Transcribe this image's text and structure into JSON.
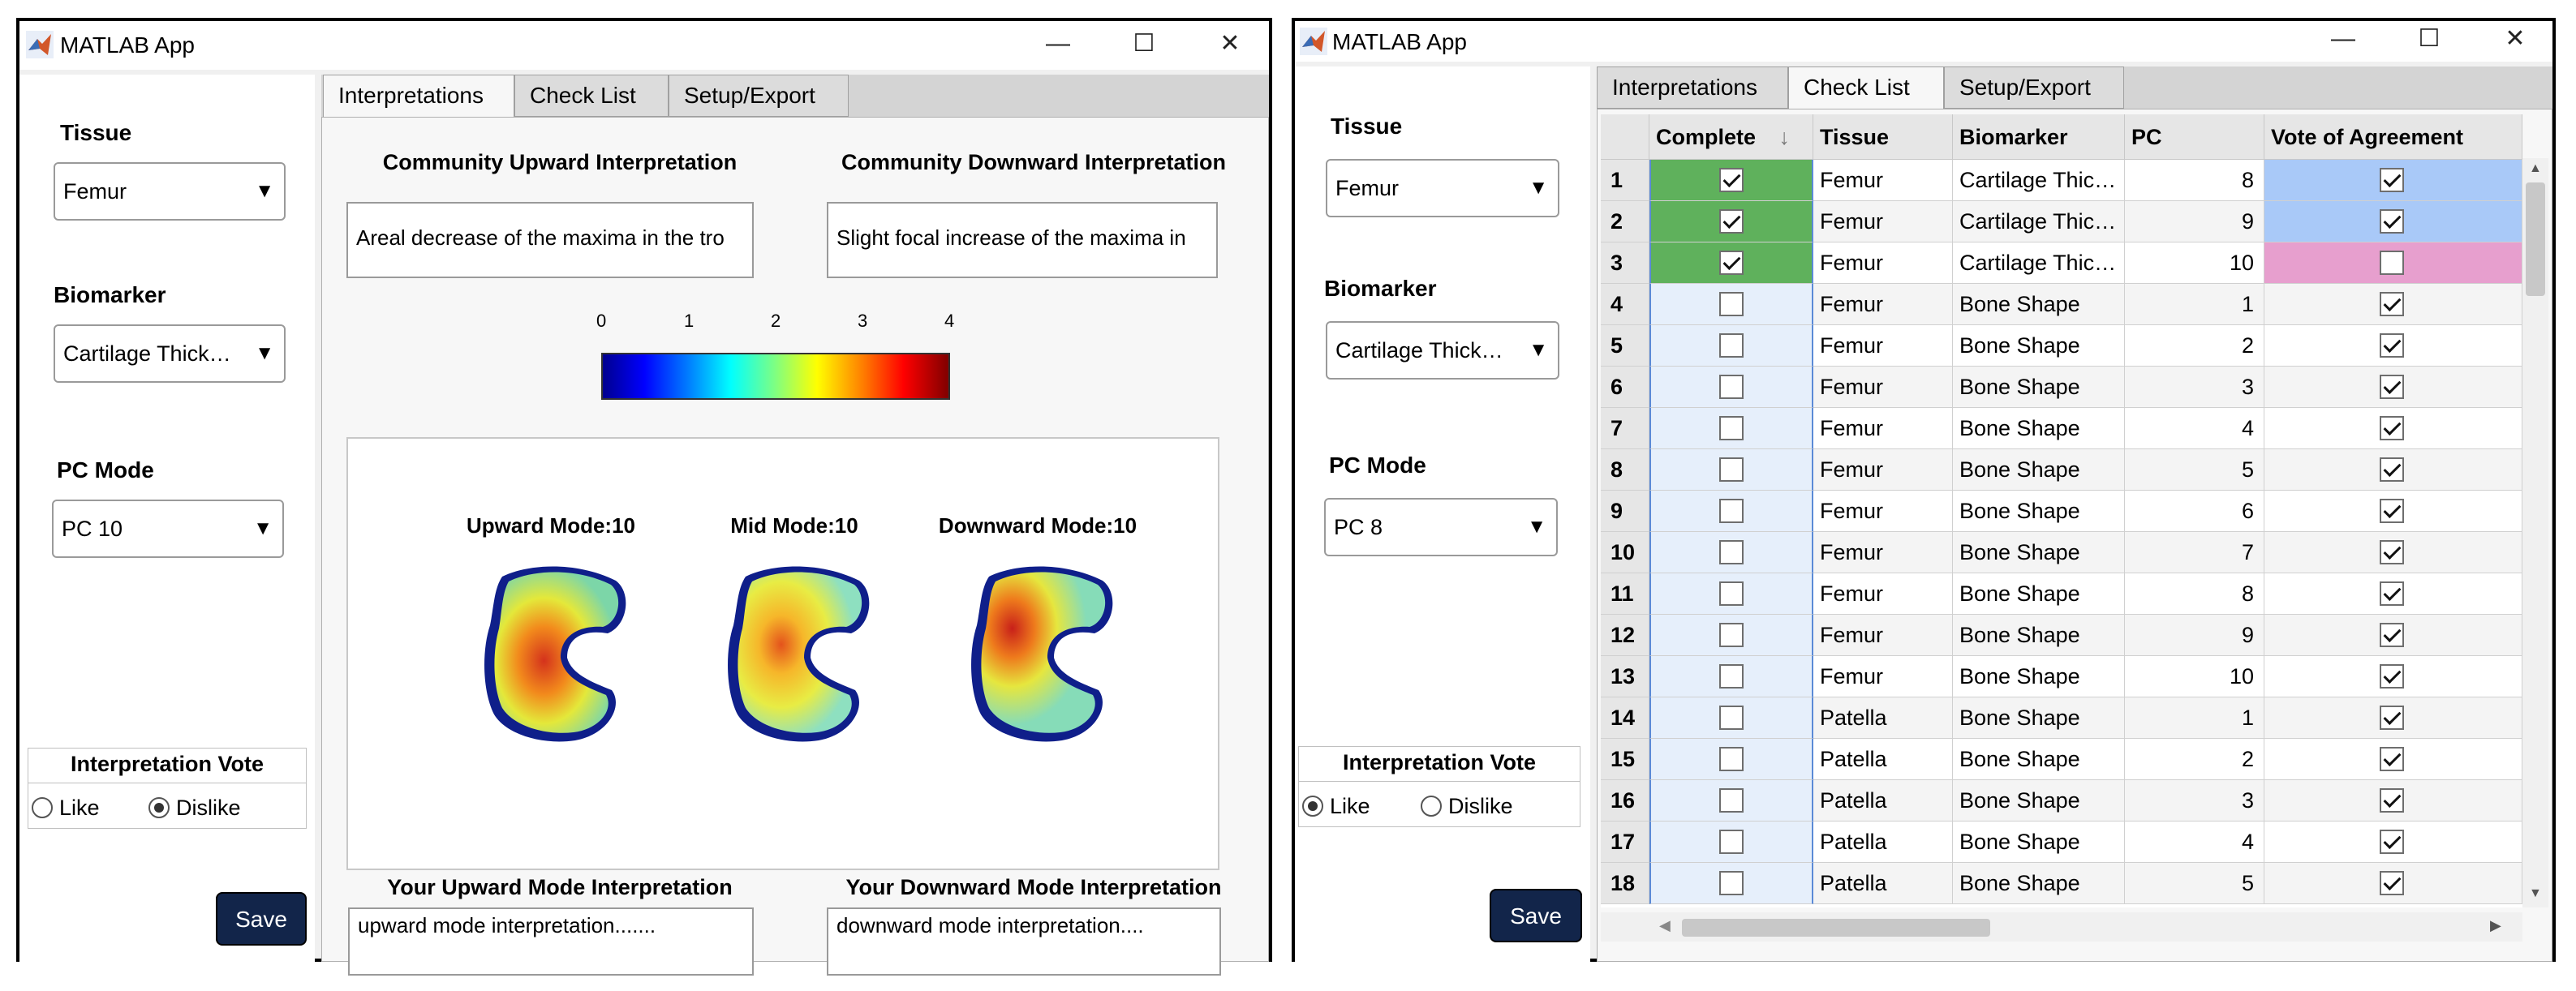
{
  "window_left": {
    "title": "MATLAB App",
    "controls": {
      "minimize": "—",
      "maximize": "☐",
      "close": "✕"
    },
    "sidebar": {
      "tissue_label": "Tissue",
      "tissue_value": "Femur",
      "biomarker_label": "Biomarker",
      "biomarker_value": "Cartilage Thick…",
      "pc_label": "PC Mode",
      "pc_value": "PC 10",
      "vote_title": "Interpretation Vote",
      "like_label": "Like",
      "dislike_label": "Dislike",
      "selected_vote": "Dislike",
      "save_label": "Save"
    },
    "tabs": [
      {
        "label": "Interpretations",
        "active": true
      },
      {
        "label": "Check List",
        "active": false
      },
      {
        "label": "Setup/Export",
        "active": false
      }
    ],
    "interpretations": {
      "community_up_title": "Community Upward Interpretation",
      "community_up_text": "Areal decrease of the maxima in the tro",
      "community_down_title": "Community Downward Interpretation",
      "community_down_text": "Slight focal increase of the maxima in",
      "colorbar_ticks": [
        "0",
        "1",
        "2",
        "3",
        "4"
      ],
      "colorbar_colormap": "jet",
      "modes": [
        {
          "title": "Upward Mode:10"
        },
        {
          "title": "Mid Mode:10"
        },
        {
          "title": "Downward Mode:10"
        }
      ],
      "your_up_title": "Your Upward Mode Interpretation",
      "your_up_text": "upward mode interpretation.......",
      "your_down_title": "Your Downward Mode Interpretation",
      "your_down_text": "downward mode interpretation...."
    }
  },
  "window_right": {
    "title": "MATLAB App",
    "controls": {
      "minimize": "—",
      "maximize": "☐",
      "close": "✕"
    },
    "sidebar": {
      "tissue_label": "Tissue",
      "tissue_value": "Femur",
      "biomarker_label": "Biomarker",
      "biomarker_value": "Cartilage Thick…",
      "pc_label": "PC Mode",
      "pc_value": "PC 8",
      "vote_title": "Interpretation Vote",
      "like_label": "Like",
      "dislike_label": "Dislike",
      "selected_vote": "Like",
      "save_label": "Save"
    },
    "tabs": [
      {
        "label": "Interpretations",
        "active": false
      },
      {
        "label": "Check List",
        "active": true
      },
      {
        "label": "Setup/Export",
        "active": false
      }
    ],
    "table": {
      "columns": [
        "Complete",
        "Tissue",
        "Biomarker",
        "PC",
        "Vote of Agreement"
      ],
      "sort_indicator": "↓",
      "rows": [
        {
          "n": "1",
          "complete": true,
          "tissue": "Femur",
          "biomarker": "Cartilage Thic…",
          "pc": "8",
          "vote": true,
          "status": "done-agree"
        },
        {
          "n": "2",
          "complete": true,
          "tissue": "Femur",
          "biomarker": "Cartilage Thic…",
          "pc": "9",
          "vote": true,
          "status": "done-agree"
        },
        {
          "n": "3",
          "complete": true,
          "tissue": "Femur",
          "biomarker": "Cartilage Thic…",
          "pc": "10",
          "vote": false,
          "status": "done-disagree"
        },
        {
          "n": "4",
          "complete": false,
          "tissue": "Femur",
          "biomarker": "Bone Shape",
          "pc": "1",
          "vote": true,
          "status": ""
        },
        {
          "n": "5",
          "complete": false,
          "tissue": "Femur",
          "biomarker": "Bone Shape",
          "pc": "2",
          "vote": true,
          "status": ""
        },
        {
          "n": "6",
          "complete": false,
          "tissue": "Femur",
          "biomarker": "Bone Shape",
          "pc": "3",
          "vote": true,
          "status": ""
        },
        {
          "n": "7",
          "complete": false,
          "tissue": "Femur",
          "biomarker": "Bone Shape",
          "pc": "4",
          "vote": true,
          "status": ""
        },
        {
          "n": "8",
          "complete": false,
          "tissue": "Femur",
          "biomarker": "Bone Shape",
          "pc": "5",
          "vote": true,
          "status": ""
        },
        {
          "n": "9",
          "complete": false,
          "tissue": "Femur",
          "biomarker": "Bone Shape",
          "pc": "6",
          "vote": true,
          "status": ""
        },
        {
          "n": "10",
          "complete": false,
          "tissue": "Femur",
          "biomarker": "Bone Shape",
          "pc": "7",
          "vote": true,
          "status": ""
        },
        {
          "n": "11",
          "complete": false,
          "tissue": "Femur",
          "biomarker": "Bone Shape",
          "pc": "8",
          "vote": true,
          "status": ""
        },
        {
          "n": "12",
          "complete": false,
          "tissue": "Femur",
          "biomarker": "Bone Shape",
          "pc": "9",
          "vote": true,
          "status": ""
        },
        {
          "n": "13",
          "complete": false,
          "tissue": "Femur",
          "biomarker": "Bone Shape",
          "pc": "10",
          "vote": true,
          "status": ""
        },
        {
          "n": "14",
          "complete": false,
          "tissue": "Patella",
          "biomarker": "Bone Shape",
          "pc": "1",
          "vote": true,
          "status": ""
        },
        {
          "n": "15",
          "complete": false,
          "tissue": "Patella",
          "biomarker": "Bone Shape",
          "pc": "2",
          "vote": true,
          "status": ""
        },
        {
          "n": "16",
          "complete": false,
          "tissue": "Patella",
          "biomarker": "Bone Shape",
          "pc": "3",
          "vote": true,
          "status": ""
        },
        {
          "n": "17",
          "complete": false,
          "tissue": "Patella",
          "biomarker": "Bone Shape",
          "pc": "4",
          "vote": true,
          "status": ""
        },
        {
          "n": "18",
          "complete": false,
          "tissue": "Patella",
          "biomarker": "Bone Shape",
          "pc": "5",
          "vote": true,
          "status": ""
        }
      ]
    }
  },
  "colors": {
    "complete_green": "#5fb15c",
    "agree_blue": "#a9c9f8",
    "disagree_pink": "#e79fce",
    "incomplete_blue": "#e6effb",
    "save_button": "#12254a"
  }
}
